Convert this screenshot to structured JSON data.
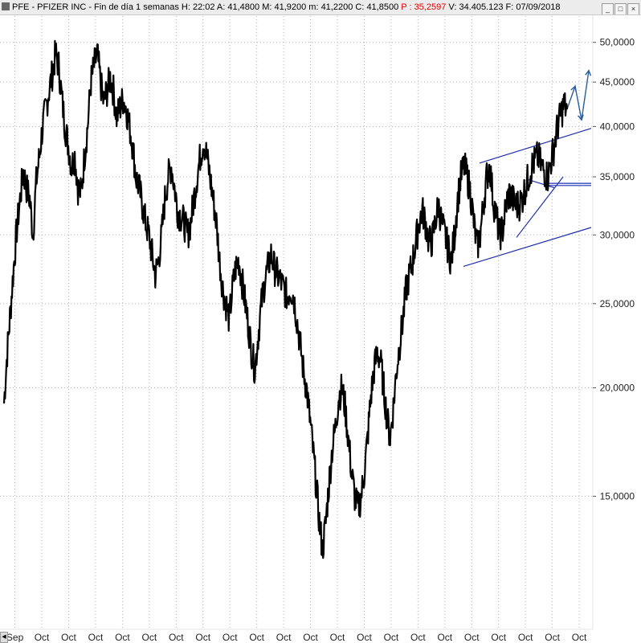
{
  "header": {
    "info_prefix": "PFE - PFIZER INC - Fin de día 1 semanas  H: 22:02  A: 41,4800  M: 41,9200  m: 41,2200  C: 41,8500",
    "info_p": "P : 35,2597",
    "info_suffix": "V: 34.405.123  F: 07/09/2018",
    "window_buttons": [
      "_",
      "□",
      "×"
    ]
  },
  "chart_data": {
    "type": "line",
    "title": "PFE - PFIZER INC",
    "yscale": "log",
    "ylim": [
      12.5,
      52.5
    ],
    "y_ticks": [
      "50,0000",
      "45,0000",
      "40,0000",
      "35,0000",
      "30,0000",
      "25,0000",
      "20,0000",
      "15,0000"
    ],
    "y_tick_values": [
      50,
      45,
      40,
      35,
      30,
      25,
      20,
      15
    ],
    "x_tick_labels": [
      "Sep",
      "Oct",
      "Oct",
      "Oct",
      "Oct",
      "Oct",
      "Oct",
      "Oct",
      "Oct",
      "Oct",
      "Oct",
      "Oct",
      "Oct",
      "Oct",
      "Oct",
      "Oct",
      "Oct",
      "Oct",
      "Oct",
      "Oct",
      "Oct",
      "Oct"
    ],
    "series": [
      {
        "values": [
          19.2,
          22,
          24.5,
          27.5,
          30.5,
          33,
          35.5,
          34,
          33,
          30,
          34.5,
          37,
          40,
          42,
          44,
          46,
          48.5,
          47,
          43,
          40,
          38,
          36,
          37,
          34,
          33.5,
          37,
          40,
          45,
          47,
          48.5,
          45,
          42.5,
          44,
          45.5,
          44,
          41,
          42,
          43,
          42,
          40,
          38,
          35,
          34,
          32.5,
          31,
          30,
          28.5,
          27,
          28,
          30,
          33,
          35,
          36,
          34,
          32,
          31.5,
          31,
          30,
          31,
          33,
          35,
          37,
          38.5,
          37,
          35,
          33,
          31,
          28,
          26,
          25,
          24,
          26,
          27.5,
          28,
          26.5,
          25,
          23.5,
          22,
          21,
          23,
          25,
          26.5,
          27.5,
          28.5,
          27.5,
          27,
          26.5,
          26,
          25.5,
          26,
          25.5,
          24,
          22.5,
          21,
          20,
          18.5,
          17,
          15.5,
          14,
          13,
          14,
          15.5,
          17,
          18,
          19.5,
          20,
          19,
          17.5,
          16,
          15,
          14.5,
          15,
          16,
          17.5,
          19.5,
          21,
          22,
          21.5,
          20,
          18.5,
          17.5,
          19,
          21,
          22.5,
          24,
          26,
          27,
          28,
          29.5,
          31,
          32,
          31,
          29.5,
          29.5,
          31,
          32.5,
          31,
          30,
          29,
          28,
          30,
          33,
          35,
          36,
          35,
          33.5,
          31,
          29,
          30,
          32.5,
          35,
          36,
          33,
          31.5,
          30,
          30.5,
          32.5,
          33.5,
          33,
          32.5,
          32.5,
          33,
          34,
          35,
          36,
          36.5,
          37,
          36,
          35.5,
          35,
          36.5,
          38,
          40,
          41.2,
          42.4,
          41.85
        ]
      }
    ],
    "trendlines": [
      {
        "name": "channel-upper",
        "points": [
          [
            597,
            36.3
          ],
          [
            736,
            39.8
          ]
        ]
      },
      {
        "name": "channel-lower",
        "points": [
          [
            577,
            27.6
          ],
          [
            736,
            30.6
          ]
        ]
      },
      {
        "name": "triangle-support",
        "points": [
          [
            643,
            29.8
          ],
          [
            701,
            35.0
          ]
        ]
      },
      {
        "name": "horizontal-support-1",
        "points": [
          [
            677,
            34.4
          ],
          [
            736,
            34.4
          ]
        ]
      },
      {
        "name": "horizontal-support-2",
        "points": [
          [
            677,
            34.2
          ],
          [
            736,
            34.2
          ]
        ]
      },
      {
        "name": "triangle-apex-side",
        "points": [
          [
            655,
            34.8
          ],
          [
            690,
            34.0
          ]
        ]
      }
    ],
    "projection": [
      [
        706,
        41.9
      ],
      [
        716,
        44.5
      ],
      [
        724,
        40.7
      ],
      [
        733,
        46.4
      ]
    ]
  }
}
